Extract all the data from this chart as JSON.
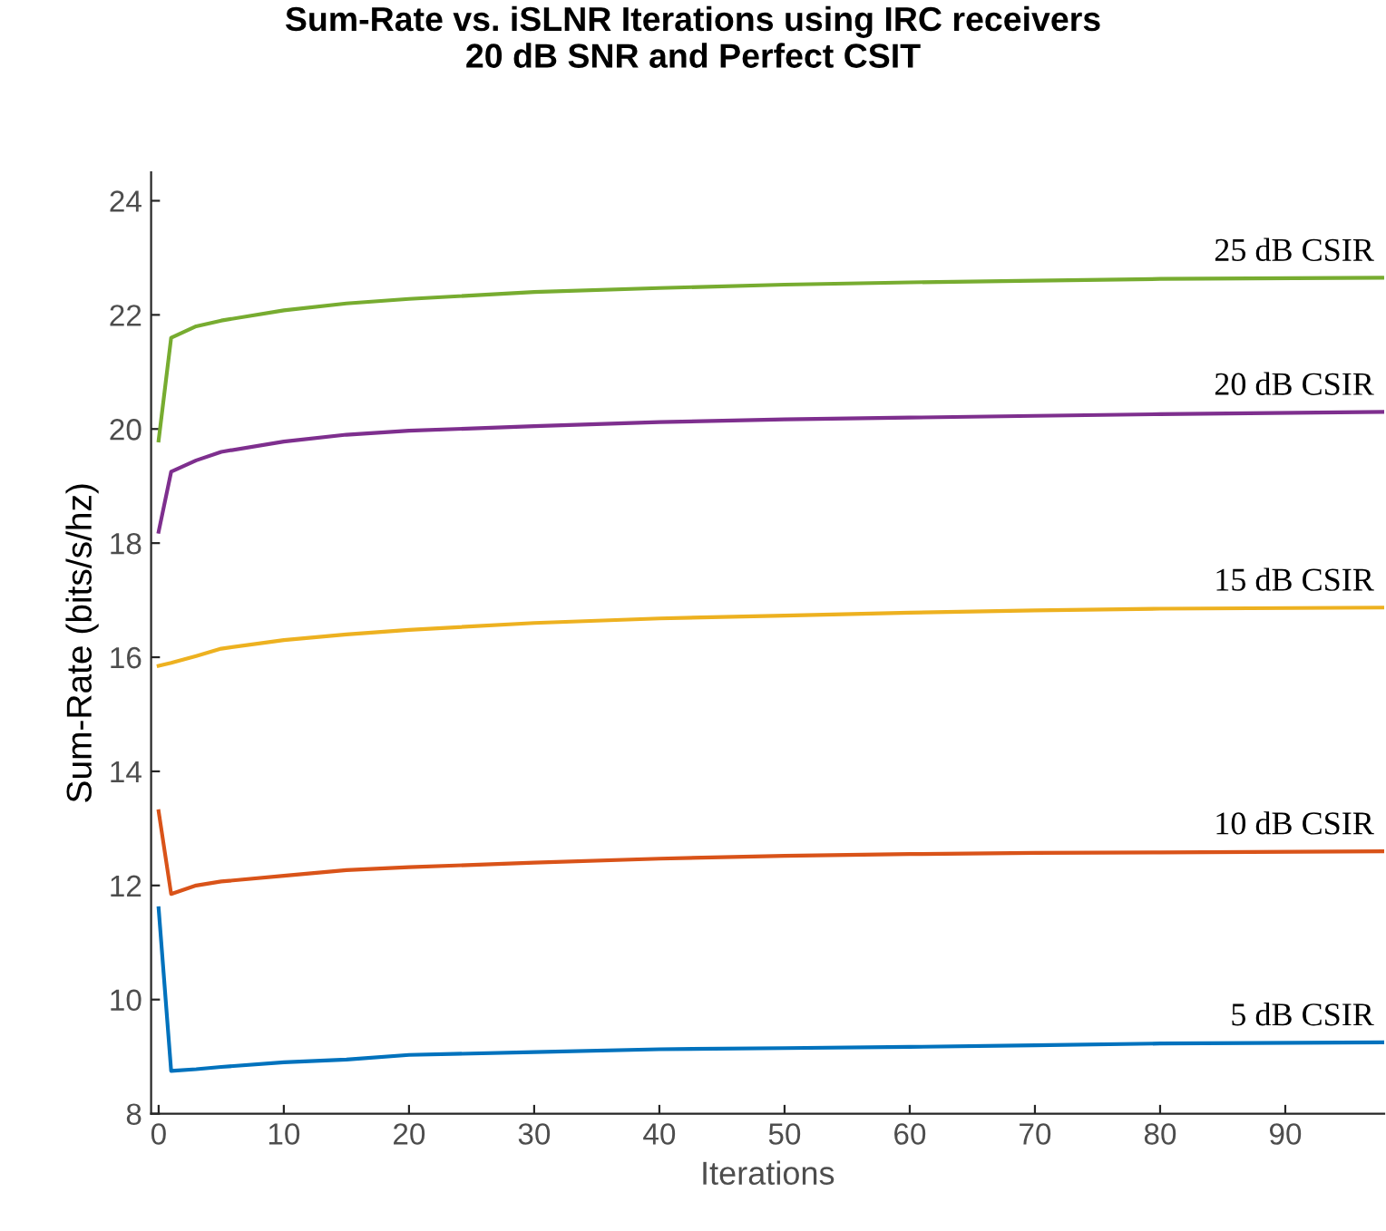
{
  "chart_data": {
    "type": "line",
    "title": "Sum-Rate vs. iSLNR Iterations using IRC receivers\n20 dB SNR and Perfect CSIT",
    "xlabel": "Iterations",
    "ylabel": "Sum-Rate (bits/s/hz)",
    "xlim": [
      -0.6,
      97.9
    ],
    "ylim": [
      8,
      24.5
    ],
    "xticks": [
      0,
      10,
      20,
      30,
      40,
      50,
      60,
      70,
      80,
      90
    ],
    "yticks": [
      8,
      10,
      12,
      14,
      16,
      18,
      20,
      22,
      24
    ],
    "grid": false,
    "legend": false,
    "line_style": "solid",
    "x": [
      0,
      1,
      3,
      5,
      10,
      15,
      20,
      30,
      40,
      50,
      60,
      70,
      80,
      97.9
    ],
    "series": [
      {
        "name": "5 dB CSIR",
        "color": "#0072bd",
        "values": [
          11.6,
          8.75,
          8.78,
          8.82,
          8.9,
          8.95,
          9.03,
          9.08,
          9.13,
          9.15,
          9.17,
          9.2,
          9.23,
          9.25
        ]
      },
      {
        "name": "10 dB CSIR",
        "color": "#d95319",
        "values": [
          13.3,
          11.85,
          12.0,
          12.07,
          12.17,
          12.27,
          12.32,
          12.4,
          12.47,
          12.52,
          12.55,
          12.57,
          12.58,
          12.6
        ]
      },
      {
        "name": "15 dB CSIR",
        "color": "#edb120",
        "values": [
          15.85,
          15.9,
          16.02,
          16.15,
          16.3,
          16.4,
          16.48,
          16.6,
          16.68,
          16.73,
          16.78,
          16.82,
          16.85,
          16.87
        ]
      },
      {
        "name": "20 dB CSIR",
        "color": "#7e2f8e",
        "values": [
          18.2,
          19.25,
          19.45,
          19.6,
          19.78,
          19.9,
          19.97,
          20.05,
          20.12,
          20.17,
          20.2,
          20.23,
          20.26,
          20.3
        ]
      },
      {
        "name": "25 dB CSIR",
        "color": "#77ac30",
        "values": [
          19.8,
          21.6,
          21.8,
          21.9,
          22.08,
          22.2,
          22.28,
          22.4,
          22.47,
          22.53,
          22.57,
          22.6,
          22.63,
          22.65
        ]
      }
    ]
  }
}
